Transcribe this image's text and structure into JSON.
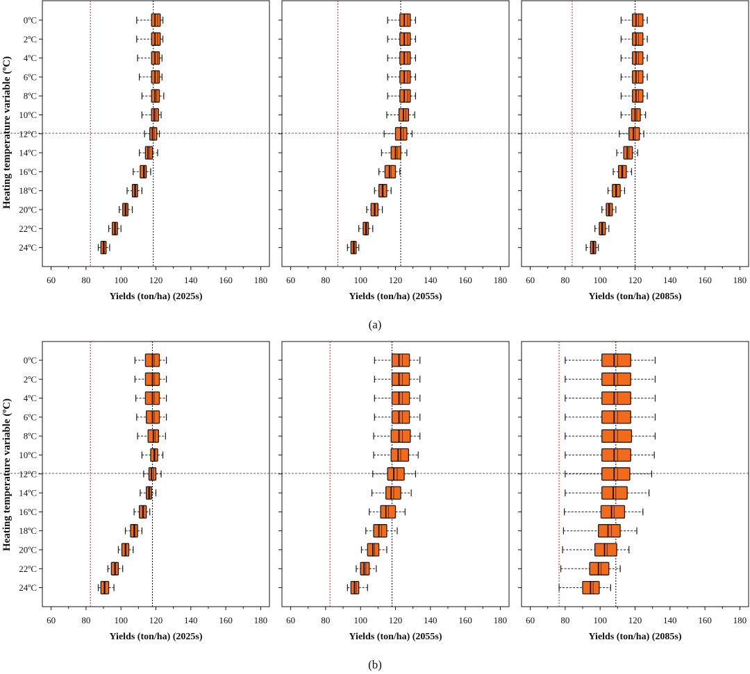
{
  "colors": {
    "box_fill": "#f26a1b",
    "box_stroke": "#1a1a1a",
    "median_line": "#000000",
    "threshold_line": "#d42020",
    "reference_line": "#000000"
  },
  "chart_data": [
    {
      "panel": "a",
      "caption": "(a)",
      "ylabel": "Heating temperature variable (ºC)",
      "charts": [
        {
          "type": "box",
          "xlabel": "Yields (ton/ha)  (2025s)",
          "xlim": [
            55,
            185
          ],
          "xticks": [
            60,
            80,
            100,
            120,
            140,
            160,
            180
          ],
          "categories": [
            "0ºC",
            "2ºC",
            "4ºC",
            "6ºC",
            "8ºC",
            "10ºC",
            "12ºC",
            "14ºC",
            "16ºC",
            "18ºC",
            "20ºC",
            "22ºC",
            "24ºC"
          ],
          "red_line": 82.5,
          "black_line": 118.5,
          "boxes": [
            {
              "min": 109,
              "q1": 117.5,
              "median": 119.5,
              "mean": 121,
              "q3": 122.5,
              "max": 124
            },
            {
              "min": 109,
              "q1": 117.5,
              "median": 119.5,
              "mean": 121,
              "q3": 122.5,
              "max": 124
            },
            {
              "min": 109.5,
              "q1": 117.5,
              "median": 119.5,
              "mean": 121,
              "q3": 122,
              "max": 123.5
            },
            {
              "min": 110.5,
              "q1": 117.5,
              "median": 119.5,
              "mean": 121,
              "q3": 122,
              "max": 123.5
            },
            {
              "min": 112,
              "q1": 117.5,
              "median": 119.5,
              "mean": 120.5,
              "q3": 122,
              "max": 124.5
            },
            {
              "min": 112,
              "q1": 117.5,
              "median": 119,
              "mean": 120,
              "q3": 121.5,
              "max": 123
            },
            {
              "min": 113.5,
              "q1": 116.5,
              "median": 118,
              "mean": 119,
              "q3": 120.5,
              "max": 122
            },
            {
              "min": 110.5,
              "q1": 114,
              "median": 115.5,
              "mean": 116.5,
              "q3": 118,
              "max": 121
            },
            {
              "min": 107,
              "q1": 111,
              "median": 113,
              "mean": 113.5,
              "q3": 114.5,
              "max": 117
            },
            {
              "min": 103.5,
              "q1": 106.5,
              "median": 108,
              "mean": 108.5,
              "q3": 109.5,
              "max": 112
            },
            {
              "min": 99,
              "q1": 101,
              "median": 102.5,
              "mean": 103,
              "q3": 104,
              "max": 106.5
            },
            {
              "min": 93,
              "q1": 95,
              "median": 96.5,
              "mean": 97,
              "q3": 98,
              "max": 100
            },
            {
              "min": 87,
              "q1": 88.5,
              "median": 90,
              "mean": 90.5,
              "q3": 91.5,
              "max": 93.5
            }
          ]
        },
        {
          "type": "box",
          "xlabel": "Yields (ton/ha)  (2055s)",
          "xlim": [
            55,
            185
          ],
          "xticks": [
            60,
            80,
            100,
            120,
            140,
            160,
            180
          ],
          "categories": [
            "0ºC",
            "2ºC",
            "4ºC",
            "6ºC",
            "8ºC",
            "10ºC",
            "12ºC",
            "14ºC",
            "16ºC",
            "18ºC",
            "20ºC",
            "22ºC",
            "24ºC"
          ],
          "red_line": 87,
          "black_line": 123,
          "boxes": [
            {
              "min": 115.5,
              "q1": 122.5,
              "median": 125,
              "mean": 127,
              "q3": 128.5,
              "max": 131.5
            },
            {
              "min": 115.5,
              "q1": 122.5,
              "median": 125,
              "mean": 127,
              "q3": 128.5,
              "max": 131.5
            },
            {
              "min": 115.5,
              "q1": 122.5,
              "median": 125,
              "mean": 127,
              "q3": 128.5,
              "max": 131.5
            },
            {
              "min": 115.5,
              "q1": 122.5,
              "median": 125,
              "mean": 127,
              "q3": 128.5,
              "max": 131.5
            },
            {
              "min": 115.5,
              "q1": 122.5,
              "median": 125,
              "mean": 127,
              "q3": 128.5,
              "max": 131.5
            },
            {
              "min": 115,
              "q1": 122,
              "median": 124.5,
              "mean": 126,
              "q3": 127.5,
              "max": 131
            },
            {
              "min": 113.5,
              "q1": 120,
              "median": 123,
              "mean": 124.5,
              "q3": 126.5,
              "max": 129.5
            },
            {
              "min": 112,
              "q1": 117.5,
              "median": 120,
              "mean": 121,
              "q3": 123,
              "max": 126.5
            },
            {
              "min": 110.5,
              "q1": 114,
              "median": 116.5,
              "mean": 117.5,
              "q3": 120,
              "max": 122.5
            },
            {
              "min": 108,
              "q1": 110.5,
              "median": 112.5,
              "mean": 113,
              "q3": 115,
              "max": 117.5
            },
            {
              "min": 103.5,
              "q1": 106,
              "median": 108,
              "mean": 108.5,
              "q3": 110,
              "max": 112.5
            },
            {
              "min": 99,
              "q1": 101.5,
              "median": 103,
              "mean": 103.5,
              "q3": 104.5,
              "max": 107
            },
            {
              "min": 92.5,
              "q1": 94.5,
              "median": 96,
              "mean": 96.5,
              "q3": 97.5,
              "max": 99
            }
          ]
        },
        {
          "type": "box",
          "xlabel": "Yields (ton/ha)  (2085s)",
          "xlim": [
            55,
            185
          ],
          "xticks": [
            60,
            80,
            100,
            120,
            140,
            160,
            180
          ],
          "categories": [
            "0ºC",
            "2ºC",
            "4ºC",
            "6ºC",
            "8ºC",
            "10ºC",
            "12ºC",
            "14ºC",
            "16ºC",
            "18ºC",
            "20ºC",
            "22ºC",
            "24ºC"
          ],
          "red_line": 84,
          "black_line": 120,
          "boxes": [
            {
              "min": 112,
              "q1": 118.5,
              "median": 120.5,
              "mean": 122,
              "q3": 124.5,
              "max": 127
            },
            {
              "min": 112,
              "q1": 118.5,
              "median": 120.5,
              "mean": 122,
              "q3": 124.5,
              "max": 127
            },
            {
              "min": 112,
              "q1": 118.5,
              "median": 120.5,
              "mean": 122,
              "q3": 124.5,
              "max": 127
            },
            {
              "min": 112,
              "q1": 118.5,
              "median": 120.5,
              "mean": 122,
              "q3": 124.5,
              "max": 127
            },
            {
              "min": 112,
              "q1": 118.5,
              "median": 120.5,
              "mean": 122,
              "q3": 124.5,
              "max": 127
            },
            {
              "min": 112,
              "q1": 118,
              "median": 120,
              "mean": 121,
              "q3": 123,
              "max": 126
            },
            {
              "min": 111,
              "q1": 116.5,
              "median": 119,
              "mean": 120,
              "q3": 122.5,
              "max": 125
            },
            {
              "min": 109.5,
              "q1": 113.5,
              "median": 115.5,
              "mean": 116.5,
              "q3": 118.5,
              "max": 121.5
            },
            {
              "min": 107.5,
              "q1": 110.5,
              "median": 112.5,
              "mean": 113,
              "q3": 115,
              "max": 118
            },
            {
              "min": 104.5,
              "q1": 107,
              "median": 109,
              "mean": 109.5,
              "q3": 111.5,
              "max": 114
            },
            {
              "min": 101,
              "q1": 103.5,
              "median": 105,
              "mean": 105.5,
              "q3": 107,
              "max": 109
            },
            {
              "min": 97,
              "q1": 99.5,
              "median": 101,
              "mean": 101.5,
              "q3": 103,
              "max": 105
            },
            {
              "min": 92,
              "q1": 94.5,
              "median": 96,
              "mean": 96.5,
              "q3": 97.5,
              "max": 99
            }
          ]
        }
      ]
    },
    {
      "panel": "b",
      "caption": "(b)",
      "ylabel": "Heating temperature variable (ºC)",
      "charts": [
        {
          "type": "box",
          "xlabel": "Yields (ton/ha)  (2025s)",
          "xlim": [
            55,
            185
          ],
          "xticks": [
            60,
            80,
            100,
            120,
            140,
            160,
            180
          ],
          "categories": [
            "0ºC",
            "2ºC",
            "4ºC",
            "6ºC",
            "8ºC",
            "10ºC",
            "12ºC",
            "14ºC",
            "16ºC",
            "18ºC",
            "20ºC",
            "22ºC",
            "24ºC"
          ],
          "red_line": 82.5,
          "black_line": 118,
          "boxes": [
            {
              "min": 108,
              "q1": 114,
              "median": 118,
              "mean": 119,
              "q3": 122,
              "max": 126
            },
            {
              "min": 108,
              "q1": 114,
              "median": 118,
              "mean": 119,
              "q3": 122,
              "max": 126
            },
            {
              "min": 108.5,
              "q1": 114,
              "median": 118,
              "mean": 119,
              "q3": 122,
              "max": 126
            },
            {
              "min": 109,
              "q1": 114.5,
              "median": 118,
              "mean": 119,
              "q3": 122,
              "max": 126
            },
            {
              "min": 109.5,
              "q1": 115.5,
              "median": 118.5,
              "mean": 119.5,
              "q3": 121.5,
              "max": 125.5
            },
            {
              "min": 112,
              "q1": 117,
              "median": 119,
              "mean": 119.5,
              "q3": 121,
              "max": 124
            },
            {
              "min": 113,
              "q1": 116,
              "median": 117.5,
              "mean": 118.5,
              "q3": 120,
              "max": 123
            },
            {
              "min": 111,
              "q1": 114.5,
              "median": 116,
              "mean": 116.5,
              "q3": 117.5,
              "max": 120
            },
            {
              "min": 107.5,
              "q1": 110.5,
              "median": 112.5,
              "mean": 113,
              "q3": 114.5,
              "max": 116.5
            },
            {
              "min": 102.5,
              "q1": 105.5,
              "median": 107.5,
              "mean": 108,
              "q3": 109.5,
              "max": 112
            },
            {
              "min": 98.5,
              "q1": 100.5,
              "median": 102.5,
              "mean": 103,
              "q3": 104.5,
              "max": 107
            },
            {
              "min": 92.5,
              "q1": 94.5,
              "median": 96.5,
              "mean": 97,
              "q3": 98.5,
              "max": 101
            },
            {
              "min": 87,
              "q1": 88.5,
              "median": 90.5,
              "mean": 91,
              "q3": 93,
              "max": 96
            }
          ]
        },
        {
          "type": "box",
          "xlabel": "Yields (ton/ha)  (2055s)",
          "xlim": [
            55,
            185
          ],
          "xticks": [
            60,
            80,
            100,
            120,
            140,
            160,
            180
          ],
          "categories": [
            "0ºC",
            "2ºC",
            "4ºC",
            "6ºC",
            "8ºC",
            "10ºC",
            "12ºC",
            "14ºC",
            "16ºC",
            "18ºC",
            "20ºC",
            "22ºC",
            "24ºC"
          ],
          "red_line": 82.5,
          "black_line": 118,
          "boxes": [
            {
              "min": 108,
              "q1": 118,
              "median": 122,
              "mean": 124,
              "q3": 128,
              "max": 134
            },
            {
              "min": 108,
              "q1": 118,
              "median": 122,
              "mean": 124,
              "q3": 128,
              "max": 134
            },
            {
              "min": 108,
              "q1": 118,
              "median": 122,
              "mean": 124,
              "q3": 128,
              "max": 134
            },
            {
              "min": 108,
              "q1": 118,
              "median": 122,
              "mean": 124,
              "q3": 128,
              "max": 134
            },
            {
              "min": 107.5,
              "q1": 117.5,
              "median": 122,
              "mean": 124,
              "q3": 128.5,
              "max": 134
            },
            {
              "min": 107.5,
              "q1": 117.5,
              "median": 121.5,
              "mean": 123,
              "q3": 127.5,
              "max": 133
            },
            {
              "min": 107,
              "q1": 115.5,
              "median": 119,
              "mean": 121,
              "q3": 125,
              "max": 131.5
            },
            {
              "min": 106.5,
              "q1": 114.5,
              "median": 117.5,
              "mean": 119,
              "q3": 123,
              "max": 129
            },
            {
              "min": 105,
              "q1": 111.5,
              "median": 114.5,
              "mean": 116,
              "q3": 120,
              "max": 125.5
            },
            {
              "min": 103,
              "q1": 107.5,
              "median": 110.5,
              "mean": 112,
              "q3": 115,
              "max": 121
            },
            {
              "min": 100.5,
              "q1": 104,
              "median": 107,
              "mean": 108,
              "q3": 110.5,
              "max": 115
            },
            {
              "min": 97.5,
              "q1": 100,
              "median": 102,
              "mean": 103,
              "q3": 105,
              "max": 109
            },
            {
              "min": 92.5,
              "q1": 94.5,
              "median": 96.5,
              "mean": 97.5,
              "q3": 99,
              "max": 104
            }
          ]
        },
        {
          "type": "box",
          "xlabel": "Yields (ton/ha)  (2085s)",
          "xlim": [
            55,
            185
          ],
          "xticks": [
            60,
            80,
            100,
            120,
            140,
            160,
            180
          ],
          "categories": [
            "0ºC",
            "2ºC",
            "4ºC",
            "6ºC",
            "8ºC",
            "10ºC",
            "12ºC",
            "14ºC",
            "16ºC",
            "18ºC",
            "20ºC",
            "22ºC",
            "24ºC"
          ],
          "red_line": 76.5,
          "black_line": 109,
          "boxes": [
            {
              "min": 80,
              "q1": 101,
              "median": 108,
              "mean": 110,
              "q3": 117.5,
              "max": 131.5
            },
            {
              "min": 80,
              "q1": 101,
              "median": 108,
              "mean": 110,
              "q3": 117.5,
              "max": 131.5
            },
            {
              "min": 80,
              "q1": 101,
              "median": 108,
              "mean": 110,
              "q3": 117.5,
              "max": 131.5
            },
            {
              "min": 80,
              "q1": 101,
              "median": 108,
              "mean": 110,
              "q3": 117.5,
              "max": 131.5
            },
            {
              "min": 80,
              "q1": 101,
              "median": 108,
              "mean": 110,
              "q3": 118,
              "max": 131.5
            },
            {
              "min": 80,
              "q1": 101,
              "median": 108,
              "mean": 110,
              "q3": 117.5,
              "max": 131
            },
            {
              "min": 80,
              "q1": 101,
              "median": 108,
              "mean": 110,
              "q3": 117,
              "max": 129.5
            },
            {
              "min": 80,
              "q1": 101,
              "median": 107.5,
              "mean": 109,
              "q3": 115.5,
              "max": 128
            },
            {
              "min": 79.5,
              "q1": 100.5,
              "median": 106.5,
              "mean": 108,
              "q3": 114,
              "max": 124.5
            },
            {
              "min": 79,
              "q1": 99,
              "median": 104.5,
              "mean": 106.5,
              "q3": 111.5,
              "max": 121
            },
            {
              "min": 78.5,
              "q1": 97,
              "median": 102.5,
              "mean": 104,
              "q3": 109.5,
              "max": 116.5
            },
            {
              "min": 77.5,
              "q1": 94,
              "median": 99,
              "mean": 100.5,
              "q3": 105,
              "max": 111.5
            },
            {
              "min": 76.5,
              "q1": 90,
              "median": 94.5,
              "mean": 96,
              "q3": 99.5,
              "max": 106
            }
          ]
        }
      ]
    }
  ]
}
